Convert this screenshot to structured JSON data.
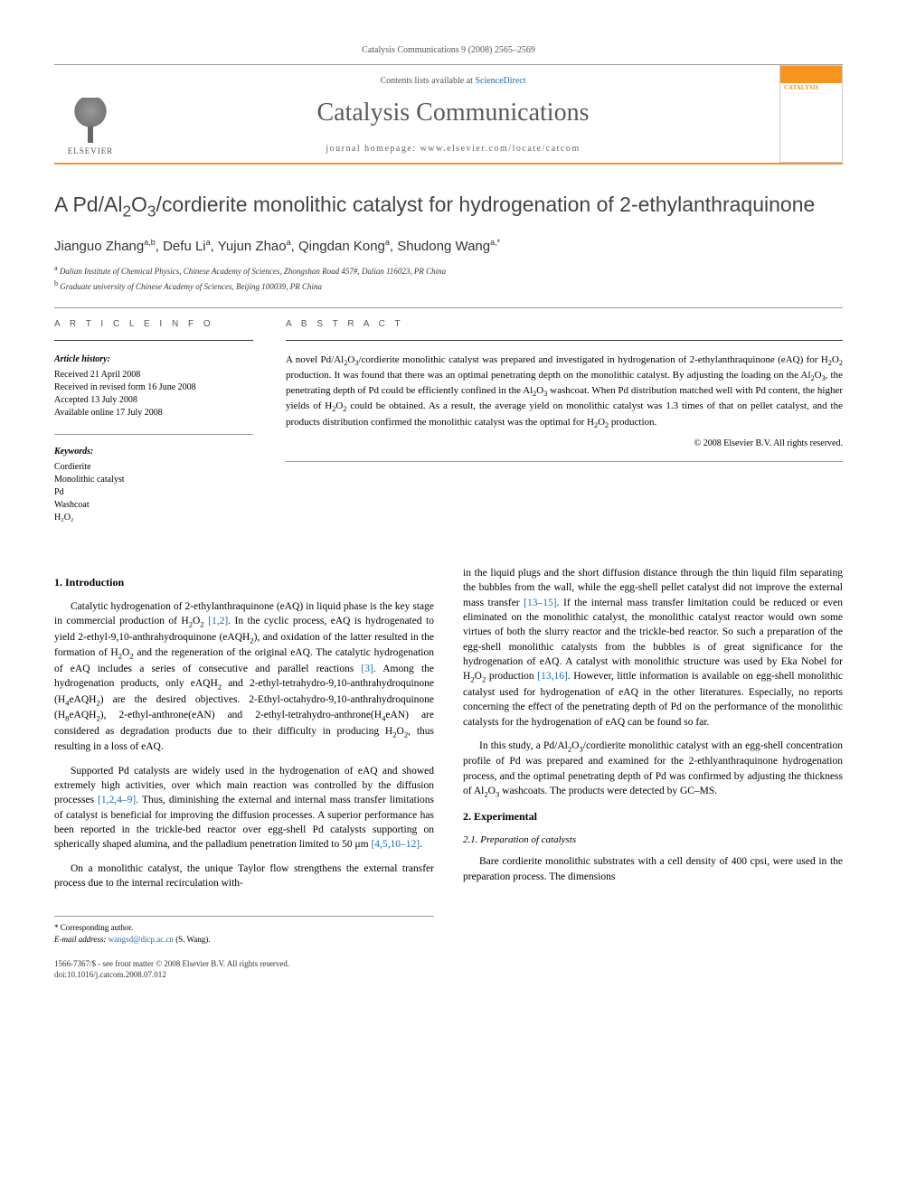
{
  "header": {
    "citation": "Catalysis Communications 9 (2008) 2565–2569",
    "contents_prefix": "Contents lists available at ",
    "contents_link": "ScienceDirect",
    "journal_name": "Catalysis Communications",
    "homepage_prefix": "journal homepage: ",
    "homepage": "www.elsevier.com/locate/catcom",
    "elsevier": "ELSEVIER"
  },
  "article": {
    "title_html": "A Pd/Al<sub>2</sub>O<sub>3</sub>/cordierite monolithic catalyst for hydrogenation of 2-ethylanthraquinone",
    "authors_html": "Jianguo Zhang<sup>a,b</sup>, Defu Li<sup>a</sup>, Yujun Zhao<sup>a</sup>, Qingdan Kong<sup>a</sup>, Shudong Wang<sup>a,*</sup>",
    "affiliations": [
      {
        "sup": "a",
        "text": "Dalian Institute of Chemical Physics, Chinese Academy of Sciences, Zhongshan Road 457#, Dalian 116023, PR China"
      },
      {
        "sup": "b",
        "text": "Graduate university of Chinese Academy of Sciences, Beijing 100039, PR China"
      }
    ]
  },
  "info": {
    "section_label": "A R T I C L E   I N F O",
    "history_title": "Article history:",
    "history": [
      "Received 21 April 2008",
      "Received in revised form 16 June 2008",
      "Accepted 13 July 2008",
      "Available online 17 July 2008"
    ],
    "keywords_title": "Keywords:",
    "keywords": [
      "Cordierite",
      "Monolithic catalyst",
      "Pd",
      "Washcoat",
      "H₂O₂"
    ]
  },
  "abstract": {
    "section_label": "A B S T R A C T",
    "text_html": "A novel Pd/Al<sub>2</sub>O<sub>3</sub>/cordierite monolithic catalyst was prepared and investigated in hydrogenation of 2-ethylanthraquinone (eAQ) for H<sub>2</sub>O<sub>2</sub> production. It was found that there was an optimal penetrating depth on the monolithic catalyst. By adjusting the loading on the Al<sub>2</sub>O<sub>3</sub>, the penetrating depth of Pd could be efficiently confined in the Al<sub>2</sub>O<sub>3</sub> washcoat. When Pd distribution matched well with Pd content, the higher yields of H<sub>2</sub>O<sub>2</sub> could be obtained. As a result, the average yield on monolithic catalyst was 1.3 times of that on pellet catalyst, and the products distribution confirmed the monolithic catalyst was the optimal for H<sub>2</sub>O<sub>2</sub> production.",
    "copyright": "© 2008 Elsevier B.V. All rights reserved."
  },
  "body": {
    "intro_heading": "1. Introduction",
    "p1_html": "Catalytic hydrogenation of 2-ethylanthraquinone (eAQ) in liquid phase is the key stage in commercial production of H<sub>2</sub>O<sub>2</sub> <a class='ref'>[1,2]</a>. In the cyclic process, eAQ is hydrogenated to yield 2-ethyl-9,10-anthrahydroquinone (eAQH<sub>2</sub>), and oxidation of the latter resulted in the formation of H<sub>2</sub>O<sub>2</sub> and the regeneration of the original eAQ. The catalytic hydrogenation of eAQ includes a series of consecutive and parallel reactions <a class='ref'>[3]</a>. Among the hydrogenation products, only eAQH<sub>2</sub> and 2-ethyl-tetrahydro-9,10-anthrahydroquinone (H<sub>4</sub>eAQH<sub>2</sub>) are the desired objectives. 2-Ethyl-octahydro-9,10-anthrahydroquinone (H<sub>8</sub>eAQH<sub>2</sub>), 2-ethyl-anthrone(eAN) and 2-ethyl-tetrahydro-anthrone(H<sub>4</sub>eAN) are considered as degradation products due to their difficulty in producing H<sub>2</sub>O<sub>2</sub>, thus resulting in a loss of eAQ.",
    "p2_html": "Supported Pd catalysts are widely used in the hydrogenation of eAQ and showed extremely high activities, over which main reaction was controlled by the diffusion processes <a class='ref'>[1,2,4–9]</a>. Thus, diminishing the external and internal mass transfer limitations of catalyst is beneficial for improving the diffusion processes. A superior performance has been reported in the trickle-bed reactor over egg-shell Pd catalysts supporting on spherically shaped alumina, and the palladium penetration limited to 50 μm <a class='ref'>[4,5,10–12]</a>.",
    "p3_html": "On a monolithic catalyst, the unique Taylor flow strengthens the external transfer process due to the internal recirculation with-",
    "p4_html": "in the liquid plugs and the short diffusion distance through the thin liquid film separating the bubbles from the wall, while the egg-shell pellet catalyst did not improve the external mass transfer <a class='ref'>[13–15]</a>. If the internal mass transfer limitation could be reduced or even eliminated on the monolithic catalyst, the monolithic catalyst reactor would own some virtues of both the slurry reactor and the trickle-bed reactor. So such a preparation of the egg-shell monolithic catalysts from the bubbles is of great significance for the hydrogenation of eAQ. A catalyst with monolithic structure was used by Eka Nobel for H<sub>2</sub>O<sub>2</sub> production <a class='ref'>[13,16]</a>. However, little information is available on egg-shell monolithic catalyst used for hydrogenation of eAQ in the other literatures. Especially, no reports concerning the effect of the penetrating depth of Pd on the performance of the monolithic catalysts for the hydrogenation of eAQ can be found so far.",
    "p5_html": "In this study, a Pd/Al<sub>2</sub>O<sub>3</sub>/cordierite monolithic catalyst with an egg-shell concentration profile of Pd was prepared and examined for the 2-ethlyanthraquinone hydrogenation process, and the optimal penetrating depth of Pd was confirmed by adjusting the thickness of Al<sub>2</sub>O<sub>3</sub> washcoats. The products were detected by GC–MS.",
    "exp_heading": "2. Experimental",
    "prep_heading": "2.1. Preparation of catalysts",
    "p6_html": "Bare cordierite monolithic substrates with a cell density of 400 cpsi, were used in the preparation process. The dimensions"
  },
  "footer": {
    "corresponding": "* Corresponding author.",
    "email_label": "E-mail address:",
    "email": "wangsd@dicp.ac.cn",
    "email_suffix": "(S. Wang).",
    "issn_line": "1566-7367/$ - see front matter © 2008 Elsevier B.V. All rights reserved.",
    "doi": "doi:10.1016/j.catcom.2008.07.012"
  }
}
